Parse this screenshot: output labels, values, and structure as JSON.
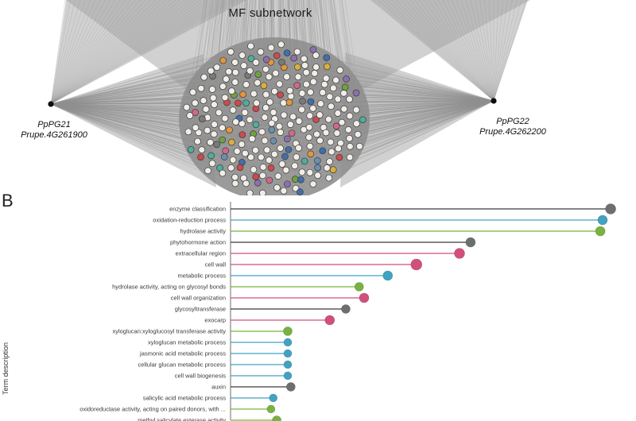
{
  "panel_label": "B",
  "network": {
    "title": "MF subnetwork",
    "hubs": [
      {
        "name": "PpPG21",
        "gene": "Prupe.4G261900"
      },
      {
        "name": "PpPG22",
        "gene": "Prupe.4G262200"
      }
    ],
    "edge_color": "#8f8f8f",
    "node_fill": "#f1eee8",
    "node_stroke": "#3c3c3c",
    "node_palette": [
      "#e2973b",
      "#6fa33f",
      "#cc4b4b",
      "#d2688a",
      "#8e6fae",
      "#6b8fae",
      "#d8b13c",
      "#4fae9b",
      "#7a7a7a",
      "#3f6fae"
    ]
  },
  "chart_data": {
    "type": "bar",
    "variant": "lollipop",
    "orientation": "horizontal",
    "title": "",
    "xlabel": "",
    "ylabel": "Term description",
    "xlim": [
      0,
      10.5
    ],
    "grid": false,
    "legend": false,
    "color_key": {
      "gray": "#6d6e71",
      "blue": "#3fa3c4",
      "green": "#78b33e",
      "pink": "#d24f7c"
    },
    "categories": [
      "enzyme classification",
      "oxidation-reduction process",
      "hydrolase activity",
      "phytohormone action",
      "extracellular region",
      "cell wall",
      "metabolic process",
      "hydrolase activity, acting on glycosyl bonds",
      "cell wall organization",
      "glycosyltransferase",
      "exocarp",
      "xyloglucan:xyloglucosyl transferase activity",
      "xyloglucan metabolic process",
      "jasmonic acid metabolic process",
      "cellular glucan metabolic process",
      "cell wall biogenesis",
      "auxin",
      "salicylic acid metabolic process",
      "oxidoreductase activity, acting on paired donors, with ...",
      "methyl salicylate esterase activity"
    ],
    "values": [
      9.96,
      9.75,
      9.69,
      6.29,
      6.0,
      4.87,
      4.12,
      3.37,
      3.5,
      3.02,
      2.6,
      1.5,
      1.5,
      1.5,
      1.5,
      1.5,
      1.58,
      1.12,
      1.06,
      1.21
    ],
    "point_colors": [
      "#6d6e71",
      "#3fa3c4",
      "#78b33e",
      "#6d6e71",
      "#d24f7c",
      "#d24f7c",
      "#3fa3c4",
      "#78b33e",
      "#d24f7c",
      "#6d6e71",
      "#d24f7c",
      "#78b33e",
      "#3fa3c4",
      "#3fa3c4",
      "#3fa3c4",
      "#3fa3c4",
      "#6d6e71",
      "#3fa3c4",
      "#78b33e",
      "#78b33e"
    ],
    "stem_colors": [
      "#3a3a3a",
      "#3fa3c4",
      "#78b33e",
      "#3a3a3a",
      "#d24f7c",
      "#d24f7c",
      "#3fa3c4",
      "#78b33e",
      "#d24f7c",
      "#3a3a3a",
      "#d24f7c",
      "#78b33e",
      "#3fa3c4",
      "#3fa3c4",
      "#3fa3c4",
      "#3fa3c4",
      "#3a3a3a",
      "#3fa3c4",
      "#78b33e",
      "#78b33e"
    ],
    "dot_radii": [
      6.5,
      6,
      6,
      6,
      6.5,
      7,
      6,
      5.5,
      6,
      5.5,
      6,
      5.5,
      5,
      5,
      5,
      5,
      5.5,
      5,
      5,
      5.5
    ]
  }
}
